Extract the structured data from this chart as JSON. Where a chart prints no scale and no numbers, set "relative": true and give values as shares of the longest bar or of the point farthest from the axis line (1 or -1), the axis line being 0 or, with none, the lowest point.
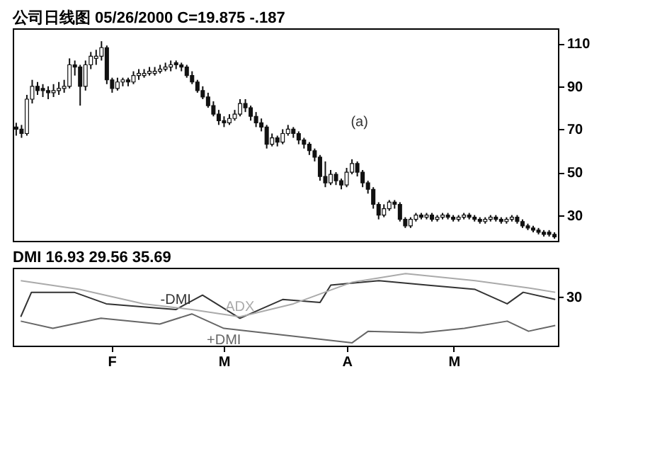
{
  "chart_data": [
    {
      "type": "candlestick",
      "title": "公司日线图 05/26/2000 C=19.875 -.187",
      "color": "#111111",
      "tick_labels": "y",
      "categories": [
        null,
        null,
        null,
        null,
        null,
        null,
        null,
        null,
        null,
        null,
        null,
        null,
        null,
        null,
        null,
        null,
        null,
        null,
        null,
        null,
        null,
        null,
        null,
        null,
        null,
        null,
        null,
        null,
        null,
        null,
        null,
        null,
        null,
        null,
        null,
        null,
        null,
        null,
        null,
        null,
        null,
        null,
        null,
        null,
        null,
        null,
        null,
        null,
        null,
        null,
        null,
        null,
        null,
        null,
        null,
        null,
        null,
        null,
        null,
        null,
        null,
        null,
        null,
        null,
        null,
        null,
        null,
        null,
        null,
        null,
        null,
        null,
        null,
        null,
        null,
        null,
        null,
        null,
        null,
        null,
        null,
        null,
        null,
        null,
        null,
        null,
        null,
        null,
        null,
        null,
        null,
        null,
        null,
        null,
        null,
        null,
        null,
        null,
        null,
        null,
        null,
        null
      ],
      "ohlc": [
        [
          71,
          73,
          67,
          70
        ],
        [
          70,
          72,
          66,
          68
        ],
        [
          68,
          86,
          67,
          84
        ],
        [
          84,
          93,
          82,
          90
        ],
        [
          90,
          92,
          86,
          88
        ],
        [
          89,
          91,
          85,
          88
        ],
        [
          88,
          90,
          84,
          87
        ],
        [
          87,
          91,
          85,
          88
        ],
        [
          88,
          92,
          86,
          89
        ],
        [
          89,
          93,
          87,
          90
        ],
        [
          90,
          103,
          89,
          100
        ],
        [
          100,
          102,
          95,
          99
        ],
        [
          99,
          100,
          81,
          90
        ],
        [
          90,
          102,
          88,
          100
        ],
        [
          100,
          106,
          98,
          104
        ],
        [
          103,
          107,
          100,
          104
        ],
        [
          104,
          111,
          102,
          108
        ],
        [
          108,
          109,
          91,
          93
        ],
        [
          93,
          94,
          87,
          89
        ],
        [
          89,
          94,
          88,
          92
        ],
        [
          92,
          94,
          90,
          93
        ],
        [
          93,
          94,
          90,
          92
        ],
        [
          92,
          97,
          91,
          95
        ],
        [
          95,
          98,
          93,
          96
        ],
        [
          95,
          98,
          94,
          96
        ],
        [
          96,
          99,
          95,
          97
        ],
        [
          96,
          99,
          95,
          97
        ],
        [
          97,
          100,
          96,
          98
        ],
        [
          98,
          101,
          97,
          99
        ],
        [
          99,
          102,
          97,
          100
        ],
        [
          101,
          102,
          98,
          100
        ],
        [
          100,
          101,
          97,
          99
        ],
        [
          99,
          100,
          94,
          95
        ],
        [
          95,
          97,
          91,
          92
        ],
        [
          92,
          93,
          87,
          88
        ],
        [
          88,
          90,
          84,
          85
        ],
        [
          85,
          87,
          80,
          81
        ],
        [
          81,
          83,
          76,
          77
        ],
        [
          77,
          79,
          72,
          74
        ],
        [
          74,
          76,
          71,
          73
        ],
        [
          73,
          77,
          72,
          75
        ],
        [
          75,
          79,
          74,
          77
        ],
        [
          77,
          84,
          76,
          82
        ],
        [
          82,
          84,
          78,
          80
        ],
        [
          80,
          81,
          74,
          76
        ],
        [
          76,
          78,
          71,
          73
        ],
        [
          73,
          75,
          69,
          71
        ],
        [
          71,
          72,
          61,
          63
        ],
        [
          63,
          68,
          62,
          66
        ],
        [
          66,
          67,
          62,
          64
        ],
        [
          64,
          70,
          63,
          68
        ],
        [
          68,
          72,
          67,
          70
        ],
        [
          70,
          71,
          66,
          68
        ],
        [
          68,
          69,
          63,
          65
        ],
        [
          65,
          66,
          61,
          63
        ],
        [
          63,
          64,
          58,
          60
        ],
        [
          60,
          61,
          55,
          57
        ],
        [
          57,
          58,
          46,
          48
        ],
        [
          48,
          55,
          43,
          45
        ],
        [
          45,
          51,
          44,
          49
        ],
        [
          49,
          50,
          44,
          46
        ],
        [
          46,
          47,
          42,
          44
        ],
        [
          44,
          52,
          43,
          50
        ],
        [
          50,
          56,
          49,
          54
        ],
        [
          54,
          55,
          48,
          50
        ],
        [
          50,
          51,
          43,
          45
        ],
        [
          45,
          46,
          40,
          42
        ],
        [
          42,
          43,
          33,
          35
        ],
        [
          35,
          36,
          28,
          30
        ],
        [
          30,
          35,
          29,
          33
        ],
        [
          33,
          37,
          32,
          36
        ],
        [
          36,
          37,
          33,
          35
        ],
        [
          35,
          36,
          27,
          28
        ],
        [
          28,
          29,
          24,
          25
        ],
        [
          25,
          29,
          24,
          28
        ],
        [
          28,
          31,
          27,
          30
        ],
        [
          30,
          31,
          28,
          29
        ],
        [
          29,
          31,
          28,
          30
        ],
        [
          30,
          31,
          27,
          28
        ],
        [
          28,
          30,
          27,
          29
        ],
        [
          29,
          31,
          28,
          30
        ],
        [
          30,
          31,
          28,
          29
        ],
        [
          29,
          30,
          27,
          28
        ],
        [
          28,
          30,
          27,
          29
        ],
        [
          29,
          31,
          28,
          30
        ],
        [
          30,
          31,
          28,
          29
        ],
        [
          29,
          30,
          27,
          28
        ],
        [
          28,
          29,
          26,
          27
        ],
        [
          27,
          29,
          26,
          28
        ],
        [
          28,
          30,
          27,
          29
        ],
        [
          29,
          30,
          27,
          28
        ],
        [
          28,
          29,
          26,
          27
        ],
        [
          27,
          29,
          26,
          28
        ],
        [
          28,
          30,
          27,
          29
        ],
        [
          29,
          30,
          26,
          27
        ],
        [
          27,
          28,
          24,
          25
        ],
        [
          25,
          26,
          23,
          24
        ],
        [
          24,
          25,
          22,
          23
        ],
        [
          23,
          24,
          21,
          22
        ],
        [
          22,
          23,
          20,
          21
        ],
        [
          22,
          23,
          20,
          21
        ],
        [
          21,
          22,
          19,
          19.875
        ]
      ],
      "ylim": [
        18,
        117
      ],
      "yticks": [
        30,
        50,
        70,
        90,
        110
      ],
      "annotations": [
        "(a)"
      ]
    },
    {
      "type": "line",
      "title": "DMI 16.93 29.56 35.69",
      "relative": true,
      "tick_labels": "x",
      "categories": [
        null,
        null,
        null,
        null,
        null,
        null,
        null,
        null,
        null,
        null,
        null,
        null,
        null,
        null,
        null,
        null,
        null,
        null,
        "F",
        null,
        null,
        null,
        null,
        null,
        null,
        null,
        null,
        null,
        null,
        null,
        null,
        null,
        null,
        null,
        null,
        null,
        null,
        null,
        null,
        "M",
        null,
        null,
        null,
        null,
        null,
        null,
        null,
        null,
        null,
        null,
        null,
        null,
        null,
        null,
        null,
        null,
        null,
        null,
        null,
        null,
        null,
        null,
        "A",
        null,
        null,
        null,
        null,
        null,
        null,
        null,
        null,
        null,
        null,
        null,
        null,
        null,
        null,
        null,
        null,
        null,
        null,
        null,
        "M",
        null,
        null,
        null,
        null,
        null,
        null,
        null,
        null,
        null,
        null,
        null,
        null,
        null,
        null,
        null,
        null,
        null,
        null,
        null
      ],
      "annotations": [
        "30"
      ],
      "series": [
        {
          "name": "-DMI",
          "color": "#333333",
          "values": [
            null,
            0.4,
            null,
            0.74,
            null,
            null,
            null,
            null,
            null,
            null,
            null,
            0.74,
            null,
            null,
            null,
            null,
            null,
            0.58,
            null,
            null,
            null,
            null,
            null,
            null,
            null,
            null,
            null,
            null,
            null,
            null,
            0.5,
            null,
            null,
            null,
            null,
            0.7,
            null,
            null,
            null,
            null,
            null,
            null,
            0.38,
            null,
            null,
            null,
            null,
            null,
            null,
            null,
            0.64,
            null,
            null,
            null,
            null,
            null,
            null,
            0.6,
            null,
            0.84,
            null,
            null,
            null,
            null,
            null,
            null,
            null,
            null,
            0.9,
            null,
            null,
            null,
            null,
            null,
            null,
            null,
            null,
            0.84,
            null,
            null,
            null,
            null,
            null,
            null,
            null,
            null,
            0.78,
            null,
            null,
            null,
            null,
            null,
            0.58,
            null,
            null,
            0.74,
            null,
            null,
            null,
            null,
            null,
            0.64
          ]
        },
        {
          "name": "+DMI",
          "color": "#666666",
          "values": [
            null,
            0.34,
            null,
            null,
            null,
            null,
            null,
            0.24,
            null,
            null,
            null,
            null,
            null,
            null,
            null,
            null,
            0.38,
            null,
            null,
            null,
            null,
            null,
            null,
            null,
            null,
            null,
            null,
            0.3,
            null,
            null,
            null,
            null,
            null,
            0.44,
            null,
            null,
            null,
            null,
            null,
            0.24,
            null,
            null,
            null,
            null,
            null,
            null,
            null,
            null,
            null,
            null,
            null,
            null,
            null,
            null,
            null,
            null,
            null,
            null,
            null,
            null,
            null,
            null,
            null,
            0.04,
            null,
            null,
            0.2,
            null,
            null,
            null,
            null,
            null,
            null,
            null,
            null,
            null,
            0.18,
            null,
            null,
            null,
            null,
            null,
            null,
            null,
            0.24,
            null,
            null,
            null,
            null,
            null,
            null,
            null,
            0.34,
            null,
            null,
            null,
            0.2,
            null,
            null,
            null,
            null,
            0.28
          ]
        },
        {
          "name": "ADX",
          "color": "#aaaaaa",
          "values": [
            null,
            0.9,
            null,
            null,
            null,
            null,
            null,
            null,
            null,
            null,
            null,
            null,
            0.78,
            null,
            null,
            null,
            null,
            null,
            null,
            null,
            null,
            null,
            null,
            null,
            0.58,
            null,
            null,
            null,
            null,
            null,
            null,
            null,
            null,
            0.5,
            null,
            null,
            null,
            null,
            null,
            null,
            null,
            null,
            0.4,
            null,
            null,
            null,
            null,
            null,
            null,
            null,
            null,
            null,
            0.58,
            null,
            null,
            null,
            null,
            null,
            null,
            null,
            null,
            null,
            null,
            0.88,
            null,
            null,
            null,
            null,
            null,
            null,
            null,
            null,
            null,
            1,
            null,
            null,
            null,
            null,
            null,
            null,
            null,
            null,
            null,
            null,
            null,
            null,
            0.9,
            null,
            null,
            null,
            null,
            null,
            null,
            null,
            null,
            null,
            0.8,
            null,
            null,
            null,
            null,
            0.74
          ]
        }
      ]
    }
  ]
}
